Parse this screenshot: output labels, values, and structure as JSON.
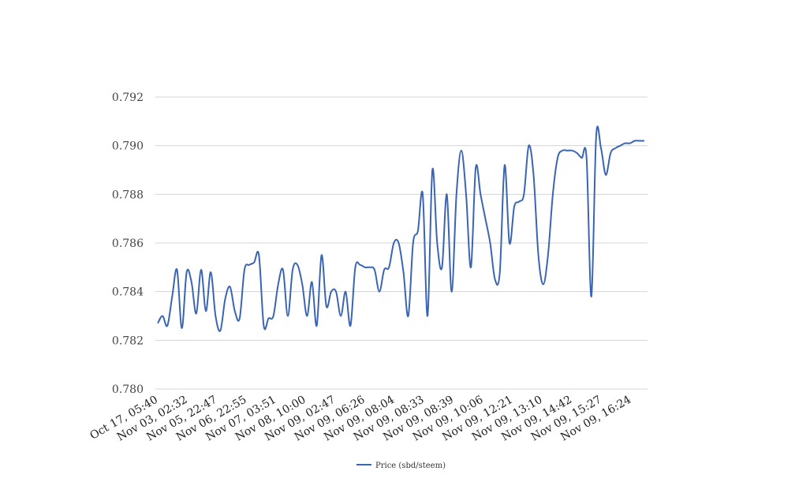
{
  "chart_data": {
    "type": "line",
    "title": "",
    "xlabel": "",
    "ylabel": "",
    "ylim": [
      0.78,
      0.792
    ],
    "yticks": [
      "0.780",
      "0.782",
      "0.784",
      "0.786",
      "0.788",
      "0.790",
      "0.792"
    ],
    "xtick_labels": [
      "Oct 17, 05:40",
      "Nov 03, 02:32",
      "Nov 05, 22:47",
      "Nov 06, 22:55",
      "Nov 07, 03:51",
      "Nov 08, 10:00",
      "Nov 09, 02:47",
      "Nov 09, 06:26",
      "Nov 09, 08:04",
      "Nov 09, 08:33",
      "Nov 09, 08:39",
      "Nov 09, 10:06",
      "Nov 09, 12:21",
      "Nov 09, 13:10",
      "Nov 09, 14:42",
      "Nov 09, 15:27",
      "Nov 09, 16:24"
    ],
    "grid": true,
    "legend_position": "bottom",
    "color": "#3a64b4",
    "series": [
      {
        "name": "Price (sbd/steem)",
        "values": [
          0.7827,
          0.783,
          0.7826,
          0.7838,
          0.7849,
          0.7825,
          0.7848,
          0.7844,
          0.7831,
          0.7849,
          0.7832,
          0.7848,
          0.783,
          0.7824,
          0.7837,
          0.7842,
          0.7832,
          0.7829,
          0.7849,
          0.7851,
          0.7852,
          0.7855,
          0.7826,
          0.7829,
          0.783,
          0.7843,
          0.7849,
          0.783,
          0.7849,
          0.7851,
          0.7843,
          0.783,
          0.7844,
          0.7826,
          0.7855,
          0.7834,
          0.784,
          0.784,
          0.783,
          0.784,
          0.7826,
          0.785,
          0.7851,
          0.785,
          0.785,
          0.7849,
          0.784,
          0.7849,
          0.785,
          0.786,
          0.786,
          0.7848,
          0.783,
          0.786,
          0.7865,
          0.788,
          0.783,
          0.789,
          0.786,
          0.785,
          0.788,
          0.784,
          0.788,
          0.7898,
          0.788,
          0.785,
          0.7891,
          0.788,
          0.787,
          0.786,
          0.7845,
          0.7848,
          0.7892,
          0.786,
          0.7875,
          0.7877,
          0.788,
          0.79,
          0.7888,
          0.7855,
          0.7843,
          0.7855,
          0.788,
          0.7895,
          0.7898,
          0.7898,
          0.7898,
          0.7897,
          0.7895,
          0.7895,
          0.7838,
          0.7904,
          0.7899,
          0.7888,
          0.7897,
          0.7899,
          0.79,
          0.7901,
          0.7901,
          0.7902,
          0.7902,
          0.7902
        ]
      }
    ]
  }
}
